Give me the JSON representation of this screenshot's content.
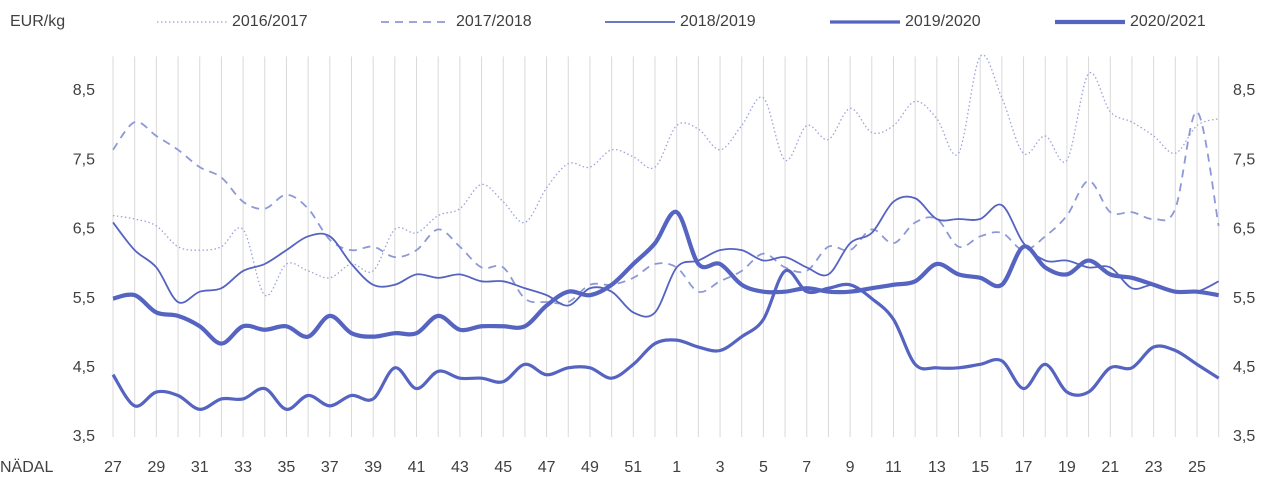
{
  "chart_data": {
    "type": "line",
    "y_label": "EUR/kg",
    "x_label": "NÄDAL",
    "categories": [
      27,
      null,
      29,
      null,
      31,
      null,
      33,
      null,
      35,
      null,
      37,
      null,
      39,
      null,
      41,
      null,
      43,
      null,
      45,
      null,
      47,
      null,
      49,
      null,
      51,
      null,
      1,
      null,
      3,
      null,
      5,
      null,
      7,
      null,
      9,
      null,
      11,
      null,
      13,
      null,
      15,
      null,
      17,
      null,
      19,
      null,
      21,
      null,
      23,
      null,
      25,
      null
    ],
    "ylim": [
      3.5,
      9.0
    ],
    "yticks": [
      {
        "value": 3.5,
        "label": "3,5"
      },
      {
        "value": 4.5,
        "label": "4,5"
      },
      {
        "value": 5.5,
        "label": "5,5"
      },
      {
        "value": 6.5,
        "label": "6,5"
      },
      {
        "value": 7.5,
        "label": "7,5"
      },
      {
        "value": 8.5,
        "label": "8,5"
      }
    ],
    "y2lim": [
      3.5,
      9.0
    ],
    "y2ticks": [
      {
        "value": 3.5,
        "label": "3,5"
      },
      {
        "value": 4.5,
        "label": "4,5"
      },
      {
        "value": 5.5,
        "label": "5,5"
      },
      {
        "value": 6.5,
        "label": "6,5"
      },
      {
        "value": 7.5,
        "label": "7,5"
      },
      {
        "value": 8.5,
        "label": "8,5"
      }
    ],
    "grid": "x",
    "legend": "top",
    "series": [
      {
        "name": "2016/2017",
        "color": "#9aa3da",
        "dash": "dotted",
        "width": 1.3,
        "values": [
          6.7,
          6.65,
          6.55,
          6.25,
          6.2,
          6.25,
          6.5,
          5.55,
          6.0,
          5.9,
          5.8,
          6.0,
          5.9,
          6.5,
          6.45,
          6.7,
          6.8,
          7.15,
          6.9,
          6.6,
          7.1,
          7.45,
          7.4,
          7.65,
          7.55,
          7.4,
          8.0,
          7.95,
          7.65,
          8.0,
          8.4,
          7.5,
          8.0,
          7.8,
          8.25,
          7.9,
          8.0,
          8.35,
          8.1,
          7.6,
          9.0,
          8.4,
          7.6,
          7.85,
          7.5,
          8.75,
          8.2,
          8.05,
          7.85,
          7.6,
          8.0,
          8.1
        ]
      },
      {
        "name": "2017/2018",
        "color": "#8e98d6",
        "dash": "dashed",
        "width": 1.8,
        "values": [
          7.65,
          8.05,
          7.85,
          7.65,
          7.4,
          7.25,
          6.9,
          6.8,
          7.0,
          6.8,
          6.35,
          6.2,
          6.25,
          6.1,
          6.2,
          6.5,
          6.25,
          5.95,
          5.95,
          5.5,
          5.45,
          5.45,
          5.7,
          5.7,
          5.8,
          6.0,
          5.95,
          5.6,
          5.75,
          5.9,
          6.15,
          5.95,
          5.9,
          6.25,
          6.2,
          6.5,
          6.3,
          6.6,
          6.65,
          6.25,
          6.4,
          6.45,
          6.2,
          6.4,
          6.7,
          7.2,
          6.75,
          6.75,
          6.65,
          6.8,
          8.2,
          6.55
        ]
      },
      {
        "name": "2018/2019",
        "color": "#5563c1",
        "dash": "solid",
        "width": 1.8,
        "values": [
          6.6,
          6.2,
          5.95,
          5.45,
          5.6,
          5.65,
          5.9,
          6.0,
          6.2,
          6.4,
          6.4,
          6.0,
          5.7,
          5.7,
          5.85,
          5.8,
          5.85,
          5.75,
          5.75,
          5.65,
          5.55,
          5.4,
          5.65,
          5.6,
          5.3,
          5.3,
          5.95,
          6.05,
          6.2,
          6.2,
          6.05,
          6.1,
          5.95,
          5.85,
          6.3,
          6.45,
          6.9,
          6.95,
          6.65,
          6.65,
          6.65,
          6.85,
          6.3,
          6.05,
          6.05,
          5.95,
          5.95,
          5.65,
          5.7,
          5.6,
          5.6,
          5.75
        ]
      },
      {
        "name": "2019/2020",
        "color": "#5563c1",
        "dash": "solid",
        "width": 3.2,
        "values": [
          4.4,
          3.95,
          4.15,
          4.1,
          3.9,
          4.05,
          4.05,
          4.2,
          3.9,
          4.1,
          3.95,
          4.1,
          4.05,
          4.5,
          4.2,
          4.45,
          4.35,
          4.35,
          4.3,
          4.55,
          4.4,
          4.5,
          4.5,
          4.35,
          4.55,
          4.85,
          4.9,
          4.8,
          4.75,
          4.95,
          5.2,
          5.9,
          5.6,
          5.65,
          5.7,
          5.5,
          5.2,
          4.55,
          4.5,
          4.5,
          4.55,
          4.6,
          4.2,
          4.55,
          4.15,
          4.15,
          4.5,
          4.5,
          4.8,
          4.75,
          4.55,
          4.35
        ]
      },
      {
        "name": "2020/2021",
        "color": "#5563c1",
        "dash": "solid",
        "width": 4.2,
        "values": [
          5.5,
          5.55,
          5.3,
          5.25,
          5.1,
          4.85,
          5.1,
          5.05,
          5.1,
          4.95,
          5.25,
          5.0,
          4.95,
          5.0,
          5.0,
          5.25,
          5.05,
          5.1,
          5.1,
          5.1,
          5.4,
          5.6,
          5.55,
          5.7,
          6.0,
          6.3,
          6.75,
          6.0,
          6.0,
          5.7,
          5.6,
          5.6,
          5.65,
          5.6,
          5.6,
          5.65,
          5.7,
          5.75,
          6.0,
          5.85,
          5.8,
          5.7,
          6.25,
          5.95,
          5.85,
          6.05,
          5.85,
          5.8,
          5.7,
          5.6,
          5.6,
          5.55
        ]
      }
    ]
  }
}
